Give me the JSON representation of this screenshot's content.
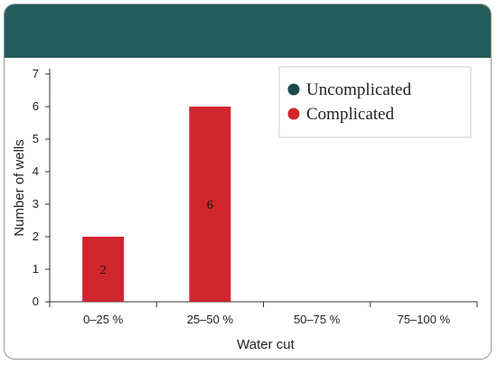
{
  "chart_data": {
    "type": "bar",
    "title": "",
    "xlabel": "Water cut",
    "ylabel": "Number of wells",
    "categories": [
      "0–25 %",
      "25–50 %",
      "50–75 %",
      "75–100 %"
    ],
    "yticks": [
      "0",
      "1",
      "2",
      "3",
      "4",
      "5",
      "6",
      "7"
    ],
    "ylim": [
      0,
      7
    ],
    "grid": false,
    "legend_position": "top-right",
    "series": [
      {
        "name": "Uncomplicated",
        "color": "#1d4a49",
        "values": [
          0,
          0,
          0,
          0
        ],
        "labels": [
          "",
          "",
          "",
          ""
        ]
      },
      {
        "name": "Complicated",
        "color": "#d0262e",
        "values": [
          2,
          6,
          0,
          0
        ],
        "labels": [
          "2",
          "6",
          "",
          ""
        ]
      }
    ]
  }
}
